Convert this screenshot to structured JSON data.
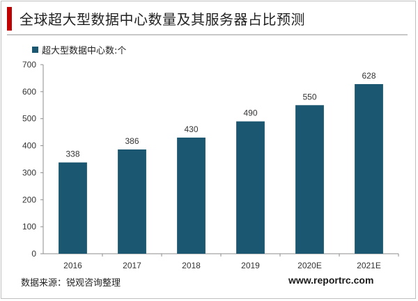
{
  "header": {
    "title": "全球超大型数据中心数量及其服务器占比预测"
  },
  "footer": {
    "source": "数据来源：锐观咨询整理",
    "website": "www.reportrc.com"
  },
  "colors": {
    "bar": "#1b5770",
    "accent": "#c00000"
  },
  "chart_data": {
    "type": "bar",
    "title": "",
    "xlabel": "",
    "ylabel": "",
    "categories": [
      "2016",
      "2017",
      "2018",
      "2019",
      "2020E",
      "2021E"
    ],
    "series": [
      {
        "name": "超大型数据中心数:个",
        "values": [
          338,
          386,
          430,
          490,
          550,
          628
        ]
      }
    ],
    "ylim": [
      0,
      700
    ],
    "yticks": [
      0,
      100,
      200,
      300,
      400,
      500,
      600,
      700
    ],
    "grid": false,
    "legend": "top-left"
  }
}
